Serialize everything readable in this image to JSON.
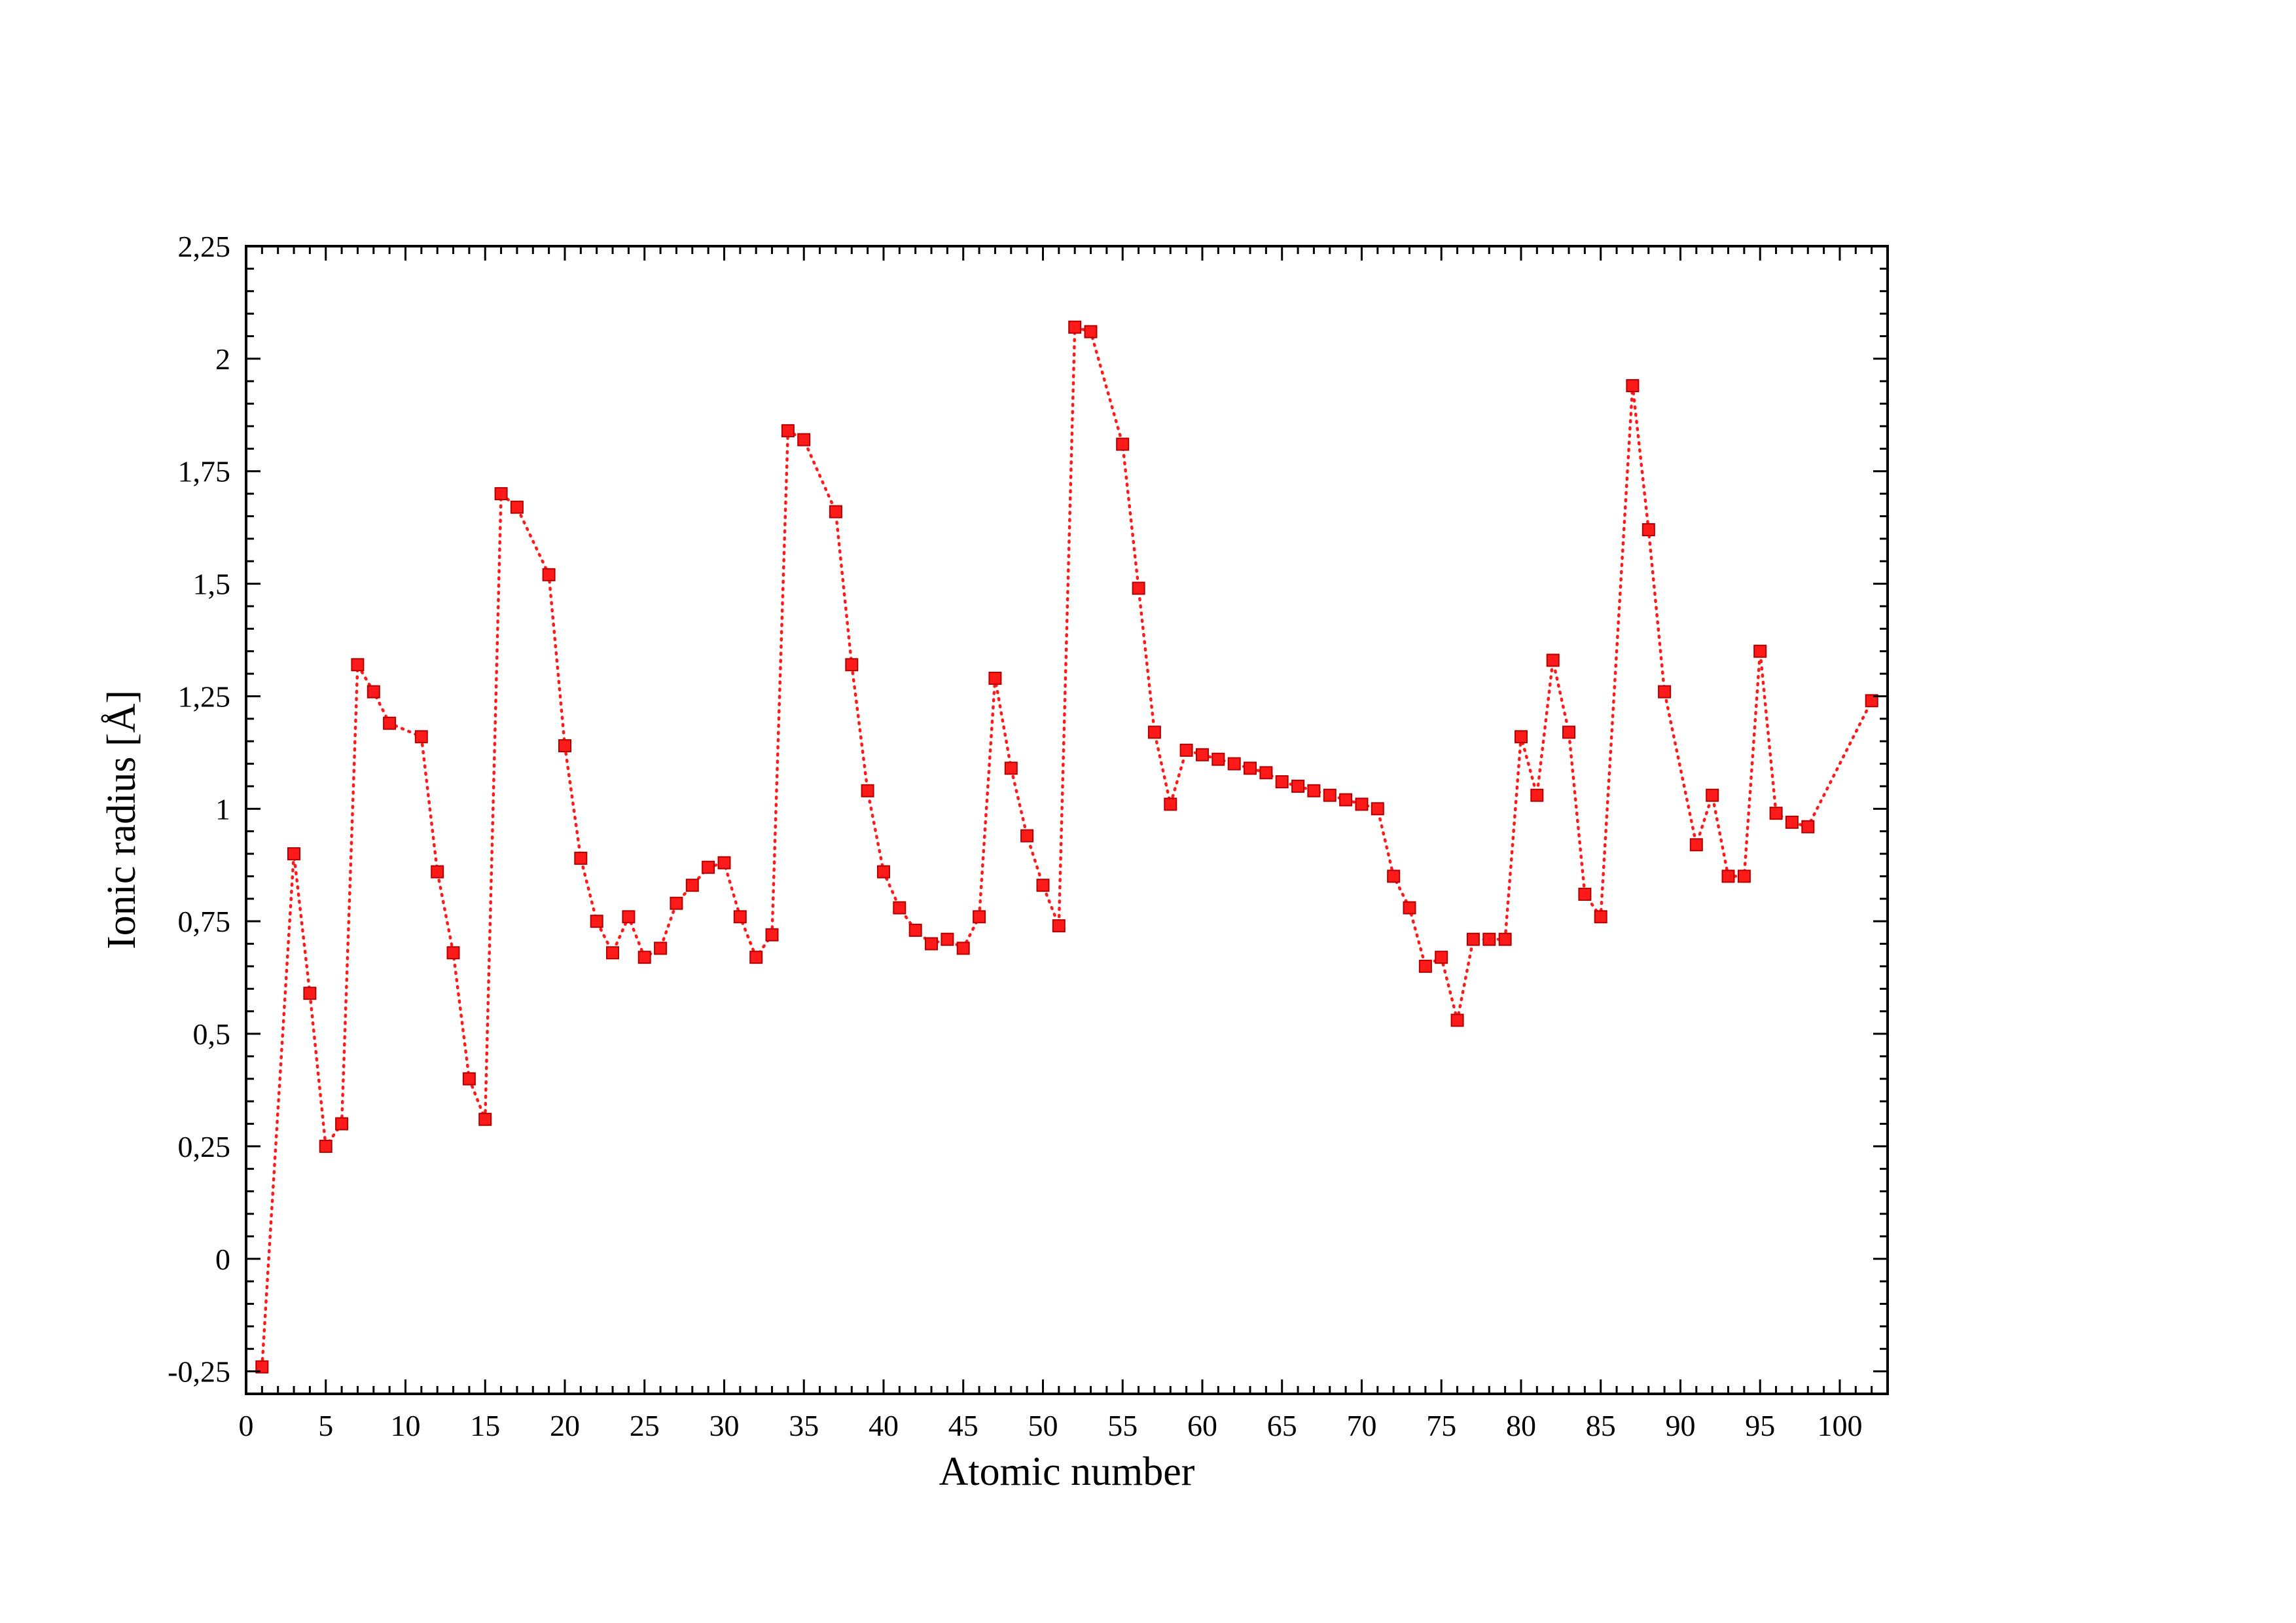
{
  "chart_data": {
    "type": "line",
    "xlabel": "Atomic number",
    "ylabel": "Ionic radius [Å]",
    "xlim": [
      0,
      103
    ],
    "ylim": [
      -0.3,
      2.25
    ],
    "x_ticks": [
      0,
      5,
      10,
      15,
      20,
      25,
      30,
      35,
      40,
      45,
      50,
      55,
      60,
      65,
      70,
      75,
      80,
      85,
      90,
      95,
      100
    ],
    "y_ticks": [
      -0.25,
      0,
      0.25,
      0.5,
      0.75,
      1,
      1.25,
      1.5,
      1.75,
      2,
      2.25
    ],
    "x_tick_labels": [
      "0",
      "5",
      "10",
      "15",
      "20",
      "25",
      "30",
      "35",
      "40",
      "45",
      "50",
      "55",
      "60",
      "65",
      "70",
      "75",
      "80",
      "85",
      "90",
      "95",
      "100"
    ],
    "y_tick_labels": [
      "-0,25",
      "0",
      "0,25",
      "0,5",
      "0,75",
      "1",
      "1,25",
      "1,5",
      "1,75",
      "2",
      "2,25"
    ],
    "grid": false,
    "series": [
      {
        "color": "#ff1a1a",
        "line_style": "dotted",
        "marker": "square",
        "points": [
          [
            1,
            -0.24
          ],
          [
            3,
            0.9
          ],
          [
            4,
            0.59
          ],
          [
            5,
            0.25
          ],
          [
            6,
            0.3
          ],
          [
            7,
            1.32
          ],
          [
            8,
            1.26
          ],
          [
            9,
            1.19
          ],
          [
            11,
            1.16
          ],
          [
            12,
            0.86
          ],
          [
            13,
            0.68
          ],
          [
            14,
            0.4
          ],
          [
            15,
            0.31
          ],
          [
            16,
            1.7
          ],
          [
            17,
            1.67
          ],
          [
            19,
            1.52
          ],
          [
            20,
            1.14
          ],
          [
            21,
            0.89
          ],
          [
            22,
            0.75
          ],
          [
            23,
            0.68
          ],
          [
            24,
            0.76
          ],
          [
            25,
            0.67
          ],
          [
            26,
            0.69
          ],
          [
            27,
            0.79
          ],
          [
            28,
            0.83
          ],
          [
            29,
            0.87
          ],
          [
            30,
            0.88
          ],
          [
            31,
            0.76
          ],
          [
            32,
            0.67
          ],
          [
            33,
            0.72
          ],
          [
            34,
            1.84
          ],
          [
            35,
            1.82
          ],
          [
            37,
            1.66
          ],
          [
            38,
            1.32
          ],
          [
            39,
            1.04
          ],
          [
            40,
            0.86
          ],
          [
            41,
            0.78
          ],
          [
            42,
            0.73
          ],
          [
            43,
            0.7
          ],
          [
            44,
            0.71
          ],
          [
            45,
            0.69
          ],
          [
            46,
            0.76
          ],
          [
            47,
            1.29
          ],
          [
            48,
            1.09
          ],
          [
            49,
            0.94
          ],
          [
            50,
            0.83
          ],
          [
            51,
            0.74
          ],
          [
            52,
            2.07
          ],
          [
            53,
            2.06
          ],
          [
            55,
            1.81
          ],
          [
            56,
            1.49
          ],
          [
            57,
            1.17
          ],
          [
            58,
            1.01
          ],
          [
            59,
            1.13
          ],
          [
            60,
            1.12
          ],
          [
            61,
            1.11
          ],
          [
            62,
            1.1
          ],
          [
            63,
            1.09
          ],
          [
            64,
            1.08
          ],
          [
            65,
            1.06
          ],
          [
            66,
            1.05
          ],
          [
            67,
            1.04
          ],
          [
            68,
            1.03
          ],
          [
            69,
            1.02
          ],
          [
            70,
            1.01
          ],
          [
            71,
            1.0
          ],
          [
            72,
            0.85
          ],
          [
            73,
            0.78
          ],
          [
            74,
            0.65
          ],
          [
            75,
            0.67
          ],
          [
            76,
            0.53
          ],
          [
            77,
            0.71
          ],
          [
            78,
            0.71
          ],
          [
            79,
            0.71
          ],
          [
            80,
            1.16
          ],
          [
            81,
            1.03
          ],
          [
            82,
            1.33
          ],
          [
            83,
            1.17
          ],
          [
            84,
            0.81
          ],
          [
            85,
            0.76
          ],
          [
            87,
            1.94
          ],
          [
            88,
            1.62
          ],
          [
            89,
            1.26
          ],
          [
            91,
            0.92
          ],
          [
            92,
            1.03
          ],
          [
            93,
            0.85
          ],
          [
            94,
            0.85
          ],
          [
            95,
            1.35
          ],
          [
            96,
            0.99
          ],
          [
            97,
            0.97
          ],
          [
            98,
            0.96
          ],
          [
            102,
            1.24
          ]
        ]
      }
    ]
  }
}
